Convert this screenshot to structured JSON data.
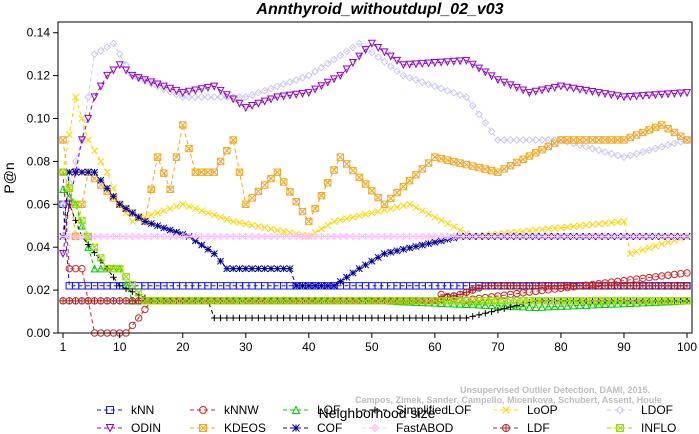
{
  "chart_data": {
    "type": "line",
    "title": "Annthyroid_withoutdupl_02_v03",
    "xlabel": "Neighborhood size",
    "ylabel": "P@n",
    "xlim": [
      0,
      100
    ],
    "ylim": [
      0,
      0.145
    ],
    "xticks": [
      "1",
      "10",
      "20",
      "30",
      "40",
      "50",
      "60",
      "70",
      "80",
      "90",
      "100"
    ],
    "yticks": [
      "0.00",
      "0.02",
      "0.04",
      "0.06",
      "0.08",
      "0.10",
      "0.12",
      "0.14"
    ],
    "grid": false,
    "legend_position": "bottom",
    "credit": [
      "Unsupervised Outlier Detection, DAMI, 2015.",
      "Campos, Zimek, Sander, Campello, Micenkova, Schubert, Assent, Houle"
    ],
    "series": [
      {
        "name": "kNN",
        "color": "#1a1aff",
        "marker": "square",
        "points": [
          [
            1,
            0.06
          ],
          [
            2,
            0.022
          ],
          [
            100,
            0.022
          ]
        ]
      },
      {
        "name": "kNNW",
        "color": "#d62728",
        "marker": "circle",
        "points": [
          [
            1,
            0.075
          ],
          [
            2,
            0.03
          ],
          [
            4,
            0.03
          ],
          [
            6,
            0.0
          ],
          [
            11,
            0.0
          ],
          [
            13,
            0.007
          ],
          [
            15,
            0.015
          ],
          [
            60,
            0.015
          ],
          [
            61,
            0.018
          ],
          [
            64,
            0.015
          ],
          [
            72,
            0.018
          ],
          [
            100,
            0.028
          ]
        ]
      },
      {
        "name": "LOF",
        "color": "#00cc00",
        "marker": "triangle",
        "points": [
          [
            1,
            0.067
          ],
          [
            3,
            0.06
          ],
          [
            6,
            0.03
          ],
          [
            10,
            0.03
          ],
          [
            12,
            0.015
          ],
          [
            24,
            0.015
          ],
          [
            35,
            0.015
          ],
          [
            52,
            0.015
          ],
          [
            76,
            0.012
          ],
          [
            100,
            0.015
          ]
        ]
      },
      {
        "name": "SimplifiedLOF",
        "color": "#000000",
        "marker": "plus",
        "points": [
          [
            1,
            0.045
          ],
          [
            2,
            0.06
          ],
          [
            4,
            0.045
          ],
          [
            8,
            0.03
          ],
          [
            10,
            0.022
          ],
          [
            15,
            0.015
          ],
          [
            24,
            0.015
          ],
          [
            25,
            0.007
          ],
          [
            65,
            0.007
          ],
          [
            76,
            0.015
          ],
          [
            100,
            0.015
          ]
        ]
      },
      {
        "name": "LoOP",
        "color": "#ffd700",
        "marker": "x",
        "points": [
          [
            1,
            0.075
          ],
          [
            3,
            0.11
          ],
          [
            5,
            0.09
          ],
          [
            8,
            0.075
          ],
          [
            10,
            0.06
          ],
          [
            12,
            0.052
          ],
          [
            20,
            0.06
          ],
          [
            28,
            0.052
          ],
          [
            40,
            0.045
          ],
          [
            44,
            0.052
          ],
          [
            56,
            0.06
          ],
          [
            66,
            0.045
          ],
          [
            90,
            0.052
          ],
          [
            91,
            0.037
          ],
          [
            100,
            0.045
          ]
        ]
      },
      {
        "name": "LDOF",
        "color": "#c8c8f8",
        "marker": "diamond",
        "points": [
          [
            1,
            0.06
          ],
          [
            4,
            0.09
          ],
          [
            6,
            0.13
          ],
          [
            9,
            0.135
          ],
          [
            12,
            0.12
          ],
          [
            20,
            0.11
          ],
          [
            30,
            0.11
          ],
          [
            40,
            0.12
          ],
          [
            48,
            0.135
          ],
          [
            55,
            0.12
          ],
          [
            65,
            0.11
          ],
          [
            70,
            0.09
          ],
          [
            80,
            0.09
          ],
          [
            90,
            0.082
          ],
          [
            100,
            0.09
          ]
        ]
      },
      {
        "name": "ODIN",
        "color": "#9400d3",
        "marker": "triangle-down",
        "points": [
          [
            1,
            0.037
          ],
          [
            2,
            0.06
          ],
          [
            4,
            0.09
          ],
          [
            6,
            0.11
          ],
          [
            8,
            0.12
          ],
          [
            10,
            0.125
          ],
          [
            12,
            0.12
          ],
          [
            20,
            0.112
          ],
          [
            25,
            0.115
          ],
          [
            30,
            0.105
          ],
          [
            35,
            0.11
          ],
          [
            40,
            0.112
          ],
          [
            45,
            0.12
          ],
          [
            50,
            0.135
          ],
          [
            55,
            0.125
          ],
          [
            65,
            0.127
          ],
          [
            70,
            0.118
          ],
          [
            75,
            0.112
          ],
          [
            80,
            0.115
          ],
          [
            90,
            0.11
          ],
          [
            100,
            0.112
          ]
        ]
      },
      {
        "name": "KDEOS",
        "color": "#f5a623",
        "marker": "square-x",
        "points": [
          [
            1,
            0.09
          ],
          [
            3,
            0.045
          ],
          [
            5,
            0.075
          ],
          [
            10,
            0.06
          ],
          [
            14,
            0.052
          ],
          [
            16,
            0.082
          ],
          [
            18,
            0.067
          ],
          [
            20,
            0.097
          ],
          [
            22,
            0.075
          ],
          [
            25,
            0.075
          ],
          [
            28,
            0.09
          ],
          [
            30,
            0.06
          ],
          [
            35,
            0.075
          ],
          [
            40,
            0.052
          ],
          [
            45,
            0.082
          ],
          [
            52,
            0.06
          ],
          [
            60,
            0.082
          ],
          [
            70,
            0.075
          ],
          [
            80,
            0.09
          ],
          [
            90,
            0.09
          ],
          [
            96,
            0.097
          ],
          [
            100,
            0.09
          ]
        ]
      },
      {
        "name": "COF",
        "color": "#000099",
        "marker": "asterisk",
        "points": [
          [
            1,
            0.045
          ],
          [
            2,
            0.075
          ],
          [
            6,
            0.075
          ],
          [
            10,
            0.06
          ],
          [
            14,
            0.052
          ],
          [
            21,
            0.045
          ],
          [
            25,
            0.037
          ],
          [
            27,
            0.03
          ],
          [
            37,
            0.03
          ],
          [
            38,
            0.022
          ],
          [
            44,
            0.022
          ],
          [
            48,
            0.03
          ],
          [
            52,
            0.037
          ],
          [
            64,
            0.045
          ],
          [
            100,
            0.045
          ]
        ]
      },
      {
        "name": "FastABOD",
        "color": "#ffc0ff",
        "marker": "diamond-plus",
        "points": [
          [
            1,
            0.045
          ],
          [
            10,
            0.045
          ],
          [
            50,
            0.045
          ],
          [
            100,
            0.045
          ]
        ]
      },
      {
        "name": "LDF",
        "color": "#b22222",
        "marker": "circle-plus",
        "points": [
          [
            1,
            0.015
          ],
          [
            5,
            0.015
          ],
          [
            60,
            0.015
          ],
          [
            64,
            0.018
          ],
          [
            68,
            0.022
          ],
          [
            100,
            0.022
          ]
        ]
      },
      {
        "name": "INFLO",
        "color": "#99dd00",
        "marker": "x-square",
        "points": [
          [
            1,
            0.075
          ],
          [
            3,
            0.06
          ],
          [
            5,
            0.045
          ],
          [
            8,
            0.03
          ],
          [
            10,
            0.03
          ],
          [
            14,
            0.015
          ],
          [
            30,
            0.015
          ],
          [
            50,
            0.015
          ],
          [
            100,
            0.015
          ]
        ]
      }
    ]
  }
}
